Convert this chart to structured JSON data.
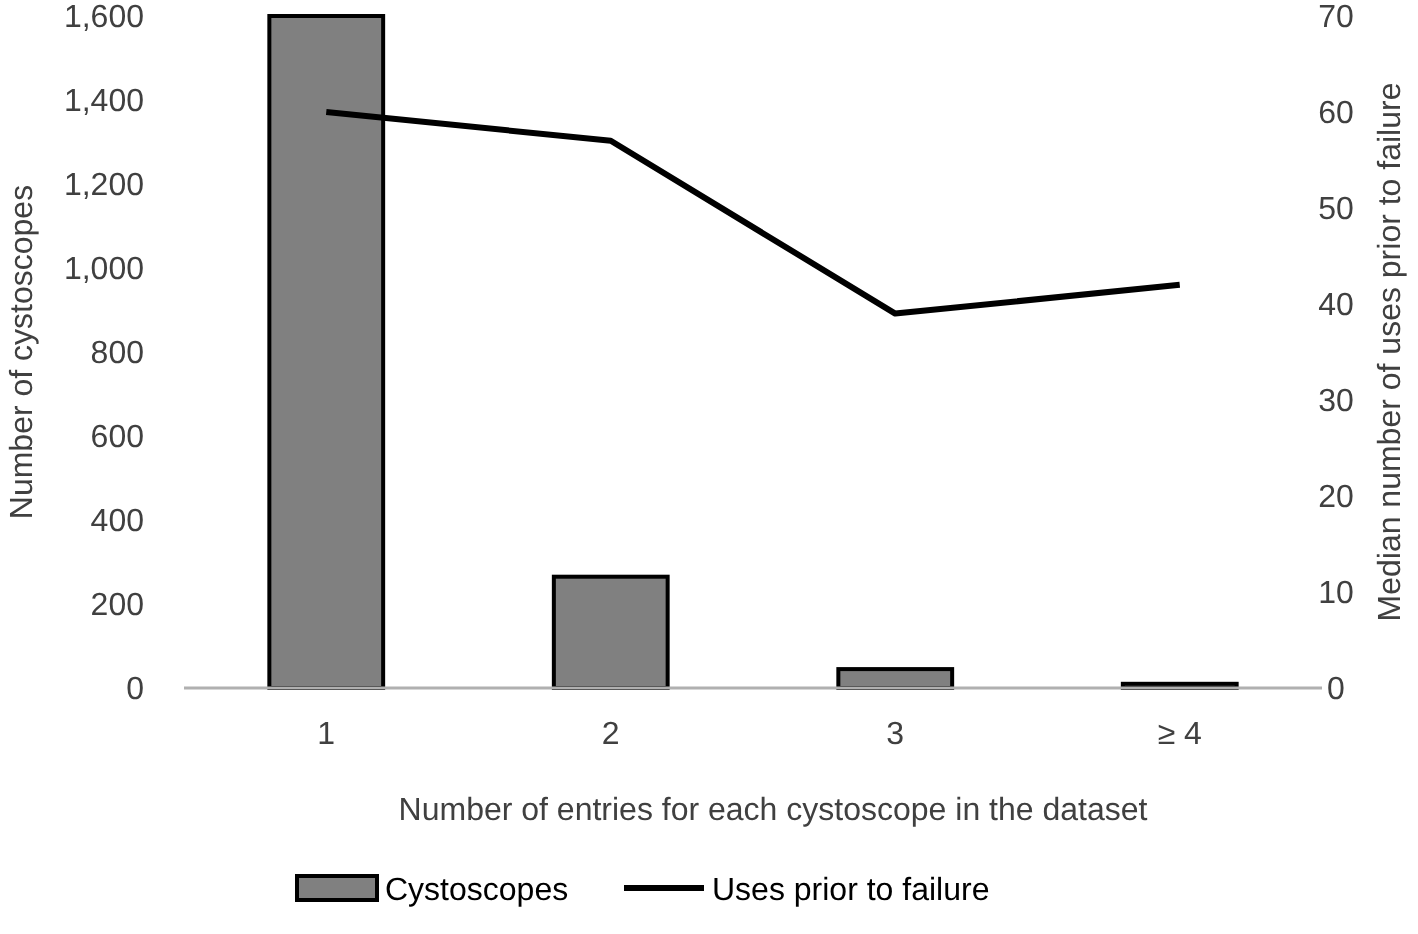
{
  "chart_data": {
    "type": "bar",
    "categories": [
      "1",
      "2",
      "3",
      "≥ 4"
    ],
    "xlabel": "Number of entries for each cystoscope in the dataset",
    "ylabel": "Number of cystoscopes",
    "y2label": "Median number of uses prior to failure",
    "series": [
      {
        "name": "Cystoscopes",
        "color": "#808080",
        "values": [
          1600,
          265,
          45,
          10
        ]
      },
      {
        "name": "Uses prior to failure",
        "type": "line",
        "axis": "y2",
        "color": "#000000",
        "values": [
          60,
          57,
          39,
          42
        ]
      }
    ],
    "ylim": [
      0,
      1600
    ],
    "yticks": [
      {
        "value": 0,
        "label": "0"
      },
      {
        "value": 200,
        "label": "200"
      },
      {
        "value": 400,
        "label": "400"
      },
      {
        "value": 600,
        "label": "600"
      },
      {
        "value": 800,
        "label": "800"
      },
      {
        "value": 1000,
        "label": "1,000"
      },
      {
        "value": 1200,
        "label": "1,200"
      },
      {
        "value": 1400,
        "label": "1,400"
      },
      {
        "value": 1600,
        "label": "1,600"
      }
    ],
    "y2lim": [
      0,
      70
    ],
    "y2ticks": [
      0,
      10,
      20,
      30,
      40,
      50,
      60,
      70
    ],
    "legend": "bottom",
    "grid": false
  }
}
